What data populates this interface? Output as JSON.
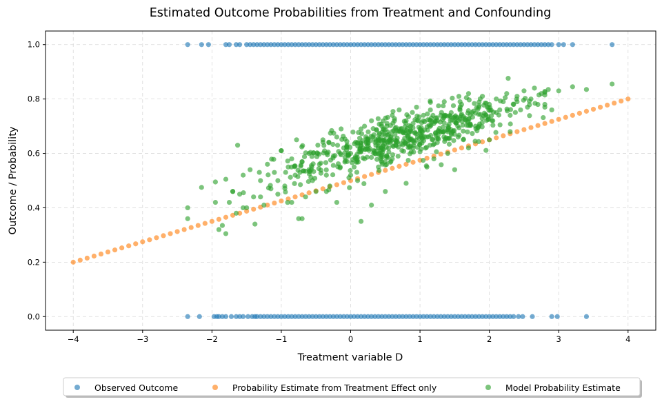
{
  "chart_data": {
    "type": "scatter",
    "title": "Estimated Outcome Probabilities from Treatment and Confounding",
    "xlabel": "Treatment variable D",
    "ylabel": "Outcome / Probability",
    "xlim": [
      -4.4,
      4.4
    ],
    "ylim": [
      -0.05,
      1.05
    ],
    "xticks": [
      -4,
      -3,
      -2,
      -1,
      0,
      1,
      2,
      3,
      4
    ],
    "xtick_labels": [
      "−4",
      "−3",
      "−2",
      "−1",
      "0",
      "1",
      "2",
      "3",
      "4"
    ],
    "yticks": [
      0.0,
      0.2,
      0.4,
      0.6,
      0.8,
      1.0
    ],
    "ytick_labels": [
      "0.0",
      "0.2",
      "0.4",
      "0.6",
      "0.8",
      "1.0"
    ],
    "grid": true,
    "legend_position": "bottom-center-outside",
    "series": [
      {
        "name": "Observed Outcome",
        "color": "#1f77b4",
        "outcome_1_x": [
          -2.35,
          -2.15,
          -2.05,
          -1.8,
          -1.75,
          -1.65,
          -1.6,
          -1.5,
          -1.45,
          -1.4,
          -1.35,
          -1.3,
          -1.25,
          -1.2,
          -1.15,
          -1.1,
          -1.05,
          -1.0,
          -0.95,
          -0.9,
          -0.85,
          -0.8,
          -0.75,
          -0.7,
          -0.65,
          -0.6,
          -0.55,
          -0.5,
          -0.45,
          -0.4,
          -0.35,
          -0.3,
          -0.25,
          -0.2,
          -0.15,
          -0.1,
          -0.05,
          0.0,
          0.05,
          0.1,
          0.15,
          0.2,
          0.25,
          0.3,
          0.35,
          0.4,
          0.45,
          0.5,
          0.55,
          0.6,
          0.65,
          0.7,
          0.75,
          0.8,
          0.85,
          0.9,
          0.95,
          1.0,
          1.05,
          1.1,
          1.15,
          1.2,
          1.25,
          1.3,
          1.35,
          1.4,
          1.45,
          1.5,
          1.55,
          1.6,
          1.65,
          1.7,
          1.75,
          1.8,
          1.85,
          1.9,
          1.95,
          2.0,
          2.05,
          2.1,
          2.15,
          2.2,
          2.25,
          2.3,
          2.35,
          2.4,
          2.45,
          2.5,
          2.55,
          2.6,
          2.65,
          2.7,
          2.75,
          2.8,
          2.85,
          2.9,
          3.0,
          3.07,
          3.2,
          3.77
        ],
        "outcome_0_x": [
          -2.35,
          -2.18,
          -1.97,
          -1.93,
          -1.9,
          -1.85,
          -1.8,
          -1.72,
          -1.65,
          -1.6,
          -1.55,
          -1.48,
          -1.42,
          -1.38,
          -1.35,
          -1.3,
          -1.25,
          -1.2,
          -1.15,
          -1.1,
          -1.05,
          -1.0,
          -0.95,
          -0.9,
          -0.85,
          -0.8,
          -0.75,
          -0.7,
          -0.65,
          -0.6,
          -0.55,
          -0.5,
          -0.45,
          -0.4,
          -0.35,
          -0.3,
          -0.25,
          -0.2,
          -0.15,
          -0.1,
          -0.05,
          0.0,
          0.05,
          0.1,
          0.15,
          0.2,
          0.25,
          0.3,
          0.35,
          0.4,
          0.45,
          0.5,
          0.55,
          0.6,
          0.65,
          0.7,
          0.75,
          0.8,
          0.85,
          0.9,
          0.95,
          1.0,
          1.05,
          1.1,
          1.15,
          1.2,
          1.25,
          1.3,
          1.35,
          1.4,
          1.45,
          1.5,
          1.55,
          1.6,
          1.65,
          1.7,
          1.75,
          1.8,
          1.85,
          1.9,
          1.95,
          2.0,
          2.05,
          2.1,
          2.15,
          2.2,
          2.25,
          2.3,
          2.35,
          2.42,
          2.48,
          2.62,
          2.9,
          2.98,
          3.4
        ]
      },
      {
        "name": "Probability Estimate from Treatment Effect only",
        "color": "#ff7f0e",
        "line": {
          "x_start": -4,
          "x_end": 4,
          "y_start": 0.2,
          "y_end": 0.8,
          "points": 81
        }
      },
      {
        "name": "Model Probability Estimate",
        "color": "#2ca02c",
        "points": [
          [
            -2.35,
            0.4
          ],
          [
            -2.35,
            0.36
          ],
          [
            -2.15,
            0.475
          ],
          [
            -1.95,
            0.495
          ],
          [
            -1.95,
            0.42
          ],
          [
            -1.9,
            0.32
          ],
          [
            -1.85,
            0.335
          ],
          [
            -1.8,
            0.305
          ],
          [
            -1.75,
            0.42
          ],
          [
            -1.7,
            0.46
          ],
          [
            -1.65,
            0.38
          ],
          [
            -1.63,
            0.63
          ],
          [
            -1.6,
            0.45
          ],
          [
            -1.55,
            0.52
          ],
          [
            -1.5,
            0.4
          ],
          [
            -1.45,
            0.54
          ],
          [
            -1.4,
            0.44
          ],
          [
            -1.38,
            0.34
          ],
          [
            -1.3,
            0.5
          ],
          [
            -1.25,
            0.41
          ],
          [
            -1.2,
            0.56
          ],
          [
            -1.15,
            0.47
          ],
          [
            -1.1,
            0.53
          ],
          [
            -1.05,
            0.45
          ],
          [
            -1.0,
            0.61
          ],
          [
            -0.95,
            0.48
          ],
          [
            -0.9,
            0.55
          ],
          [
            -0.85,
            0.42
          ],
          [
            -0.8,
            0.52
          ],
          [
            -0.78,
            0.65
          ],
          [
            -0.75,
            0.36
          ],
          [
            -0.7,
            0.57
          ],
          [
            -0.65,
            0.44
          ],
          [
            -0.6,
            0.6
          ],
          [
            -0.55,
            0.5
          ],
          [
            -0.5,
            0.46
          ],
          [
            -0.45,
            0.56
          ],
          [
            -0.4,
            0.65
          ],
          [
            -0.35,
            0.52
          ],
          [
            -0.3,
            0.48
          ],
          [
            -0.25,
            0.59
          ],
          [
            -0.2,
            0.66
          ],
          [
            -0.15,
            0.55
          ],
          [
            -0.1,
            0.62
          ],
          [
            -0.05,
            0.57
          ],
          [
            0.0,
            0.6
          ],
          [
            0.05,
            0.55
          ],
          [
            0.1,
            0.64
          ],
          [
            0.15,
            0.69
          ],
          [
            0.2,
            0.58
          ],
          [
            0.25,
            0.64
          ],
          [
            0.3,
            0.72
          ],
          [
            0.35,
            0.6
          ],
          [
            0.4,
            0.65
          ],
          [
            0.45,
            0.7
          ],
          [
            0.5,
            0.57
          ],
          [
            0.55,
            0.67
          ],
          [
            0.6,
            0.74
          ],
          [
            0.65,
            0.63
          ],
          [
            0.7,
            0.69
          ],
          [
            0.75,
            0.68
          ],
          [
            0.8,
            0.72
          ],
          [
            0.85,
            0.65
          ],
          [
            0.9,
            0.71
          ],
          [
            0.95,
            0.77
          ],
          [
            1.0,
            0.69
          ],
          [
            1.05,
            0.74
          ],
          [
            1.1,
            0.66
          ],
          [
            1.15,
            0.76
          ],
          [
            1.2,
            0.71
          ],
          [
            1.25,
            0.64
          ],
          [
            1.3,
            0.74
          ],
          [
            1.35,
            0.79
          ],
          [
            1.4,
            0.7
          ],
          [
            1.45,
            0.75
          ],
          [
            1.5,
            0.67
          ],
          [
            1.55,
            0.72
          ],
          [
            1.6,
            0.78
          ],
          [
            1.65,
            0.73
          ],
          [
            1.7,
            0.82
          ],
          [
            1.75,
            0.75
          ],
          [
            1.8,
            0.7
          ],
          [
            1.85,
            0.77
          ],
          [
            1.9,
            0.81
          ],
          [
            1.95,
            0.74
          ],
          [
            2.0,
            0.78
          ],
          [
            2.05,
            0.72
          ],
          [
            2.1,
            0.8
          ],
          [
            2.15,
            0.76
          ],
          [
            2.2,
            0.79
          ],
          [
            2.25,
            0.82
          ],
          [
            2.3,
            0.74
          ],
          [
            2.35,
            0.78
          ],
          [
            2.4,
            0.81
          ],
          [
            2.45,
            0.76
          ],
          [
            2.5,
            0.83
          ],
          [
            2.55,
            0.77
          ],
          [
            2.6,
            0.8
          ],
          [
            2.65,
            0.84
          ],
          [
            2.7,
            0.78
          ],
          [
            2.75,
            0.82
          ],
          [
            2.85,
            0.835
          ],
          [
            2.9,
            0.76
          ],
          [
            3.0,
            0.83
          ],
          [
            3.2,
            0.845
          ],
          [
            3.4,
            0.835
          ],
          [
            3.77,
            0.855
          ],
          [
            0.1,
            0.5
          ],
          [
            0.15,
            0.35
          ],
          [
            0.3,
            0.41
          ],
          [
            0.5,
            0.46
          ],
          [
            0.8,
            0.49
          ],
          [
            1.1,
            0.55
          ],
          [
            1.4,
            0.6
          ],
          [
            1.7,
            0.62
          ],
          [
            2.0,
            0.65
          ],
          [
            2.3,
            0.68
          ],
          [
            -0.7,
            0.36
          ],
          [
            -0.2,
            0.42
          ],
          [
            0.0,
            0.52
          ],
          [
            0.4,
            0.55
          ],
          [
            0.6,
            0.58
          ],
          [
            0.9,
            0.62
          ],
          [
            1.2,
            0.58
          ],
          [
            1.5,
            0.54
          ],
          [
            -1.7,
            0.46
          ],
          [
            -1.55,
            0.4
          ],
          [
            -1.3,
            0.44
          ],
          [
            -1.05,
            0.5
          ],
          [
            -0.85,
            0.58
          ],
          [
            -0.6,
            0.54
          ],
          [
            -0.35,
            0.46
          ],
          [
            -0.15,
            0.6
          ],
          [
            0.2,
            0.7
          ],
          [
            0.45,
            0.62
          ],
          [
            0.7,
            0.76
          ],
          [
            1.0,
            0.64
          ],
          [
            1.25,
            0.72
          ],
          [
            1.55,
            0.66
          ],
          [
            1.85,
            0.7
          ],
          [
            2.1,
            0.75
          ],
          [
            2.4,
            0.79
          ]
        ],
        "filler": {
          "count": 560,
          "x_mean": 0.7,
          "x_sd": 0.85,
          "slope": 0.072,
          "intercept": 0.605,
          "noise_sd": 0.042
        }
      }
    ],
    "legend": [
      {
        "label": "Observed Outcome",
        "color": "#1f77b4"
      },
      {
        "label": "Probability Estimate from Treatment Effect only",
        "color": "#ff7f0e"
      },
      {
        "label": "Model Probability Estimate",
        "color": "#2ca02c"
      }
    ]
  }
}
